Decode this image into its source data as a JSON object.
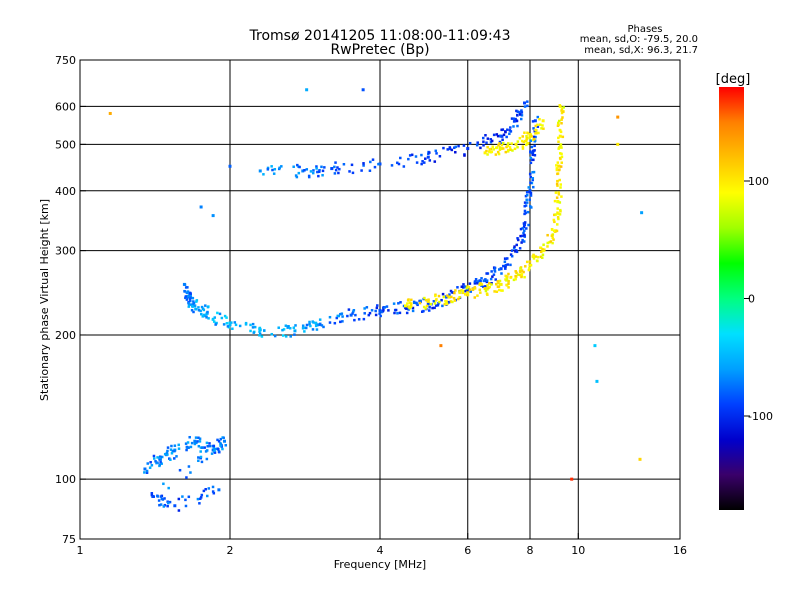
{
  "chart_data": {
    "type": "scatter",
    "title": "Tromsø 20141205 11:08:00-11:09:43",
    "subtitle": "RwPretec (Bp)",
    "xlabel": "Frequency [MHz]",
    "ylabel": "Stationary phase Virtual Height [km]",
    "x_scale": "log",
    "y_scale": "log",
    "xlim": [
      1,
      16
    ],
    "ylim": [
      75,
      750
    ],
    "x_ticks": [
      1,
      2,
      4,
      6,
      8,
      10,
      16
    ],
    "y_ticks": [
      75,
      100,
      200,
      300,
      400,
      500,
      600,
      750
    ],
    "x_gridlines": [
      2,
      4,
      6,
      8,
      10
    ],
    "y_gridlines": [
      100,
      200,
      300,
      400,
      500,
      600
    ],
    "grid": true,
    "stats": {
      "heading": "Phases",
      "line1": "mean, sd,O: -79.5, 20.0",
      "line2": "mean, sd,X:  96.3, 21.7"
    },
    "colorbar": {
      "label": "[deg]",
      "range": [
        -180,
        180
      ],
      "ticks": [
        100,
        0,
        -100
      ],
      "colormap": [
        "#000000",
        "#3a006a",
        "#0000cc",
        "#0040ff",
        "#00a0ff",
        "#00e0ff",
        "#00ff80",
        "#00ff00",
        "#a0ff00",
        "#ffff00",
        "#ffc000",
        "#ff8000",
        "#ff0000"
      ]
    },
    "series": [
      {
        "trace": "F-layer O-mode lower branch (freq MHz, height km, phase deg)",
        "points": [
          [
            1.62,
            255,
            -70
          ],
          [
            1.65,
            240,
            -75
          ],
          [
            1.7,
            230,
            -60
          ],
          [
            1.8,
            222,
            -55
          ],
          [
            2.0,
            210,
            -50
          ],
          [
            2.3,
            205,
            -50
          ],
          [
            2.7,
            204,
            -55
          ],
          [
            3.0,
            210,
            -65
          ],
          [
            3.5,
            220,
            -80
          ],
          [
            4.0,
            225,
            -85
          ],
          [
            4.5,
            228,
            -90
          ],
          [
            5.0,
            232,
            -90
          ],
          [
            5.5,
            240,
            -95
          ],
          [
            6.0,
            250,
            -90
          ],
          [
            6.5,
            260,
            -95
          ],
          [
            7.0,
            275,
            -90
          ],
          [
            7.5,
            300,
            -95
          ],
          [
            7.8,
            340,
            -90
          ],
          [
            8.0,
            400,
            -85
          ],
          [
            8.1,
            480,
            -85
          ],
          [
            8.2,
            560,
            -90
          ]
        ]
      },
      {
        "trace": "F-layer X-mode lower branch",
        "points": [
          [
            4.5,
            230,
            90
          ],
          [
            5.0,
            235,
            100
          ],
          [
            5.5,
            240,
            95
          ],
          [
            6.0,
            245,
            100
          ],
          [
            6.5,
            250,
            95
          ],
          [
            7.0,
            255,
            100
          ],
          [
            7.5,
            265,
            95
          ],
          [
            8.0,
            280,
            100
          ],
          [
            8.5,
            300,
            95
          ],
          [
            9.0,
            330,
            100
          ],
          [
            9.1,
            380,
            95
          ],
          [
            9.15,
            450,
            100
          ],
          [
            9.2,
            520,
            95
          ],
          [
            9.2,
            600,
            90
          ]
        ]
      },
      {
        "trace": "F-layer O-mode multiple reflection",
        "points": [
          [
            2.3,
            440,
            -65
          ],
          [
            2.8,
            440,
            -70
          ],
          [
            3.2,
            445,
            -80
          ],
          [
            4.0,
            455,
            -85
          ],
          [
            5.0,
            470,
            -90
          ],
          [
            6.0,
            490,
            -95
          ],
          [
            7.0,
            520,
            -95
          ],
          [
            7.5,
            560,
            -90
          ],
          [
            7.8,
            610,
            -90
          ]
        ]
      },
      {
        "trace": "F-layer X-mode multiple reflection",
        "points": [
          [
            6.5,
            480,
            95
          ],
          [
            7.0,
            490,
            100
          ],
          [
            7.5,
            500,
            95
          ],
          [
            8.0,
            520,
            100
          ],
          [
            8.5,
            560,
            95
          ]
        ]
      },
      {
        "trace": "E-layer echoes",
        "points": [
          [
            1.35,
            105,
            -75
          ],
          [
            1.45,
            110,
            -70
          ],
          [
            1.55,
            115,
            -65
          ],
          [
            1.7,
            120,
            -70
          ],
          [
            1.85,
            115,
            -75
          ],
          [
            1.95,
            120,
            -70
          ],
          [
            1.4,
            92,
            -80
          ],
          [
            1.55,
            88,
            -85
          ],
          [
            1.9,
            95,
            -75
          ]
        ]
      },
      {
        "trace": "scattered echoes",
        "points": [
          [
            1.75,
            370,
            -70
          ],
          [
            1.85,
            355,
            -65
          ],
          [
            1.15,
            580,
            130
          ],
          [
            2.85,
            650,
            -55
          ],
          [
            3.7,
            650,
            -85
          ],
          [
            2.0,
            450,
            -80
          ],
          [
            10.8,
            190,
            -40
          ],
          [
            10.9,
            160,
            -45
          ],
          [
            12.0,
            500,
            100
          ],
          [
            12.0,
            570,
            140
          ],
          [
            13.3,
            110,
            110
          ],
          [
            13.4,
            360,
            -60
          ],
          [
            9.7,
            100,
            170
          ],
          [
            5.3,
            190,
            150
          ]
        ]
      }
    ]
  }
}
